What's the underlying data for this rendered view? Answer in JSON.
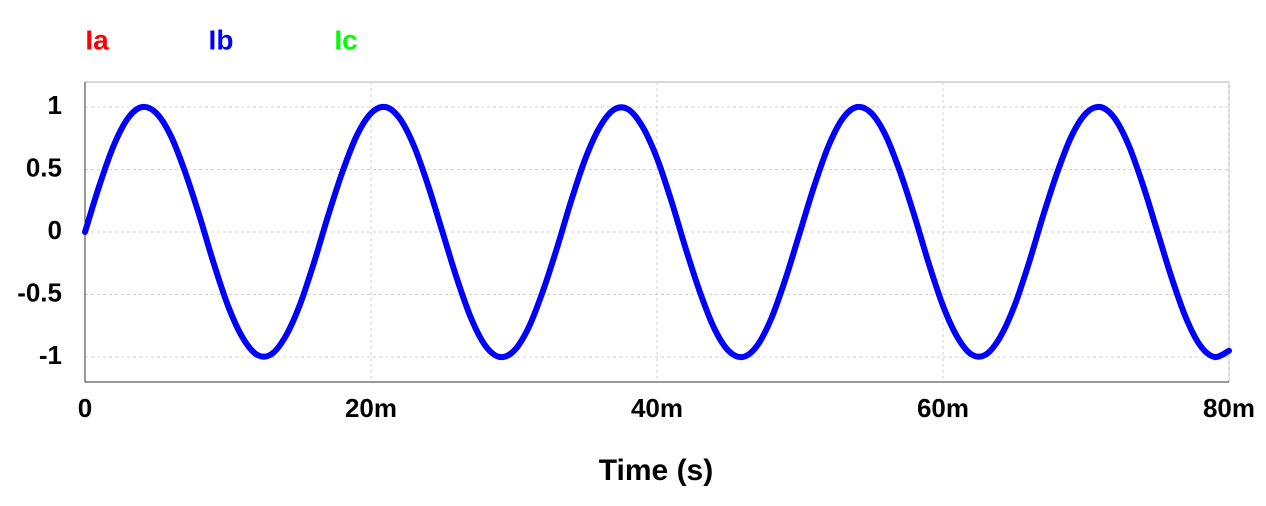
{
  "chart_data": {
    "type": "line",
    "x_label": "Time (s)",
    "x": [
      0,
      0.001,
      0.002,
      0.003,
      0.004,
      0.005,
      0.006,
      0.007,
      0.008,
      0.009,
      0.01,
      0.011,
      0.012,
      0.013,
      0.014,
      0.015,
      0.016,
      0.017,
      0.018,
      0.019,
      0.02,
      0.021,
      0.022,
      0.023,
      0.024,
      0.025,
      0.026,
      0.027,
      0.028,
      0.029,
      0.03,
      0.031,
      0.032,
      0.033,
      0.034,
      0.035,
      0.036,
      0.037,
      0.038,
      0.039,
      0.04,
      0.041,
      0.042,
      0.043,
      0.044,
      0.045,
      0.046,
      0.047,
      0.048,
      0.049,
      0.05,
      0.051,
      0.052,
      0.053,
      0.054,
      0.055,
      0.056,
      0.057,
      0.058,
      0.059,
      0.06,
      0.061,
      0.062,
      0.063,
      0.064,
      0.065,
      0.066,
      0.067,
      0.068,
      0.069,
      0.07,
      0.071,
      0.072,
      0.073,
      0.074,
      0.075,
      0.076,
      0.077,
      0.078,
      0.079,
      0.08
    ],
    "series": [
      {
        "name": "Ia",
        "color": "#ff0000",
        "values": [
          null,
          null,
          null,
          null,
          null,
          null,
          null,
          null,
          null,
          null,
          null,
          null,
          null,
          null,
          null,
          null,
          null,
          null,
          null,
          null,
          null,
          null,
          null,
          null,
          null,
          null,
          null,
          null,
          null,
          null,
          null,
          null,
          null,
          null,
          null,
          null,
          null,
          null,
          null,
          null,
          null,
          null,
          null,
          null,
          null,
          null,
          null,
          null,
          null,
          null,
          null,
          null,
          null,
          null,
          null,
          null,
          null,
          null,
          null,
          null,
          null,
          null,
          null,
          null,
          null,
          null,
          null,
          null,
          null,
          null,
          null,
          null,
          null,
          null,
          null,
          null,
          null,
          null,
          null,
          null,
          null
        ]
      },
      {
        "name": "Ib",
        "color": "#0000ff",
        "values": [
          0,
          0.37,
          0.69,
          0.91,
          1,
          0.95,
          0.77,
          0.48,
          0.13,
          -0.25,
          -0.59,
          -0.84,
          -0.98,
          -0.98,
          -0.84,
          -0.59,
          -0.25,
          0.13,
          0.48,
          0.77,
          0.95,
          1,
          0.91,
          0.69,
          0.37,
          0,
          -0.37,
          -0.69,
          -0.91,
          -1,
          -0.95,
          -0.77,
          -0.48,
          -0.13,
          0.25,
          0.59,
          0.84,
          0.98,
          0.98,
          0.84,
          0.59,
          0.25,
          -0.13,
          -0.48,
          -0.77,
          -0.95,
          -1,
          -0.91,
          -0.69,
          -0.37,
          0,
          0.37,
          0.69,
          0.91,
          1,
          0.95,
          0.77,
          0.48,
          0.13,
          -0.25,
          -0.59,
          -0.84,
          -0.98,
          -0.98,
          -0.84,
          -0.59,
          -0.25,
          0.13,
          0.48,
          0.77,
          0.95,
          1,
          0.91,
          0.69,
          0.37,
          0,
          -0.37,
          -0.69,
          -0.91,
          -1,
          -0.95
        ]
      },
      {
        "name": "Ic",
        "color": "#00ff00",
        "values": [
          null,
          null,
          null,
          null,
          null,
          null,
          null,
          null,
          null,
          null,
          null,
          null,
          null,
          null,
          null,
          null,
          null,
          null,
          null,
          null,
          null,
          null,
          null,
          null,
          null,
          null,
          null,
          null,
          null,
          null,
          null,
          null,
          null,
          null,
          null,
          null,
          null,
          null,
          null,
          null,
          null,
          null,
          null,
          null,
          null,
          null,
          null,
          null,
          null,
          null,
          null,
          null,
          null,
          null,
          null,
          null,
          null,
          null,
          null,
          null,
          null,
          null,
          null,
          null,
          null,
          null,
          null,
          null,
          null,
          null,
          null,
          null,
          null,
          null,
          null,
          null,
          null,
          null,
          null,
          null,
          null
        ]
      }
    ],
    "xlim": [
      0,
      0.08
    ],
    "xticks": [
      0,
      {
        "value": 0.02,
        "label": "20m"
      },
      {
        "value": 0.04,
        "label": "40m"
      },
      {
        "value": 0.06,
        "label": "60m"
      },
      {
        "value": 0.08,
        "label": "80m"
      }
    ],
    "ylim": [
      -1.2,
      1.2
    ],
    "yticks": [
      1,
      0.5,
      0,
      -0.5,
      -1
    ],
    "grid": true
  }
}
